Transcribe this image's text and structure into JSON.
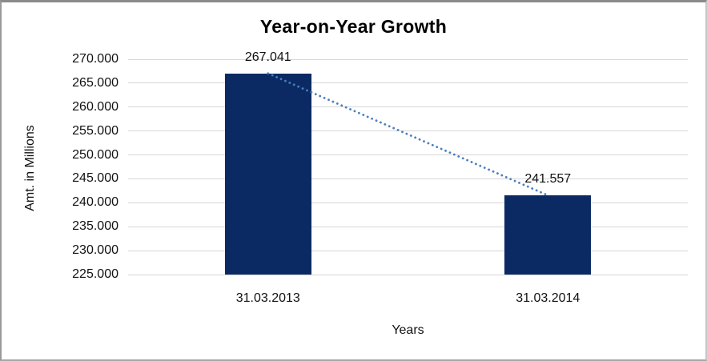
{
  "chart_data": {
    "type": "bar",
    "title": "Year-on-Year Growth",
    "xlabel": "Years",
    "ylabel": "Amt. in Millions",
    "categories": [
      "31.03.2013",
      "31.03.2014"
    ],
    "values": [
      267.041,
      241.557
    ],
    "data_labels": [
      "267.041",
      "241.557"
    ],
    "yticks": [
      "270.000",
      "265.000",
      "260.000",
      "255.000",
      "250.000",
      "245.000",
      "240.000",
      "235.000",
      "230.000",
      "225.000"
    ],
    "ylim": [
      225,
      270
    ],
    "grid": true,
    "legend": false,
    "bar_color": "#0B2A63",
    "gridline_color": "#D6D6D6",
    "text_color": "#111111",
    "trendline": {
      "type": "linear",
      "style": "dotted",
      "color": "#4A7EC2"
    }
  }
}
